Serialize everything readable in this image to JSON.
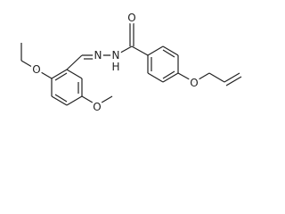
{
  "atoms": {
    "ethoxy_o": "O",
    "imine_n": "N",
    "amide_n": "N",
    "amide_h": "H",
    "carbonyl_o": "O",
    "methoxy_o": "O",
    "allyloxy_o": "O"
  }
}
